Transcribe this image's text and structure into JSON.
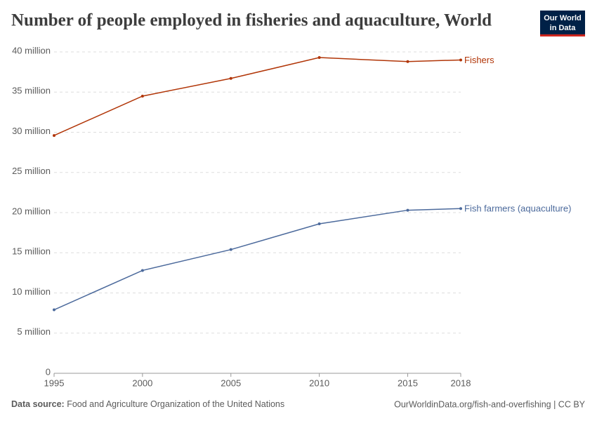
{
  "logo": [
    "Our World",
    "in Data"
  ],
  "chart_data": {
    "type": "line",
    "title": "Number of people employed in fisheries and aquaculture, World",
    "x": [
      1995,
      2000,
      2005,
      2010,
      2015,
      2018
    ],
    "series": [
      {
        "name": "Fishers",
        "color": "#b13507",
        "values": [
          29600000,
          34500000,
          36700000,
          39300000,
          38800000,
          39000000
        ]
      },
      {
        "name": "Fish farmers (aquaculture)",
        "color": "#4c6a9c",
        "values": [
          7900000,
          12800000,
          15400000,
          18600000,
          20300000,
          20500000
        ]
      }
    ],
    "xlim": [
      1995,
      2018
    ],
    "xticks": [
      1995,
      2000,
      2005,
      2010,
      2015,
      2018
    ],
    "ylim": [
      0,
      40000000
    ],
    "yticks": [
      0,
      {
        "value": 5000000,
        "label": "5 million"
      },
      {
        "value": 10000000,
        "label": "10 million"
      },
      {
        "value": 15000000,
        "label": "15 million"
      },
      {
        "value": 20000000,
        "label": "20 million"
      },
      {
        "value": 25000000,
        "label": "25 million"
      },
      {
        "value": 30000000,
        "label": "30 million"
      },
      {
        "value": 35000000,
        "label": "35 million"
      },
      {
        "value": 40000000,
        "label": "40 million"
      }
    ],
    "grid": true
  },
  "footer": {
    "source_label": "Data source:",
    "source_text": "Food and Agriculture Organization of the United Nations",
    "url": "OurWorldinData.org/fish-and-overfishing | CC BY"
  }
}
